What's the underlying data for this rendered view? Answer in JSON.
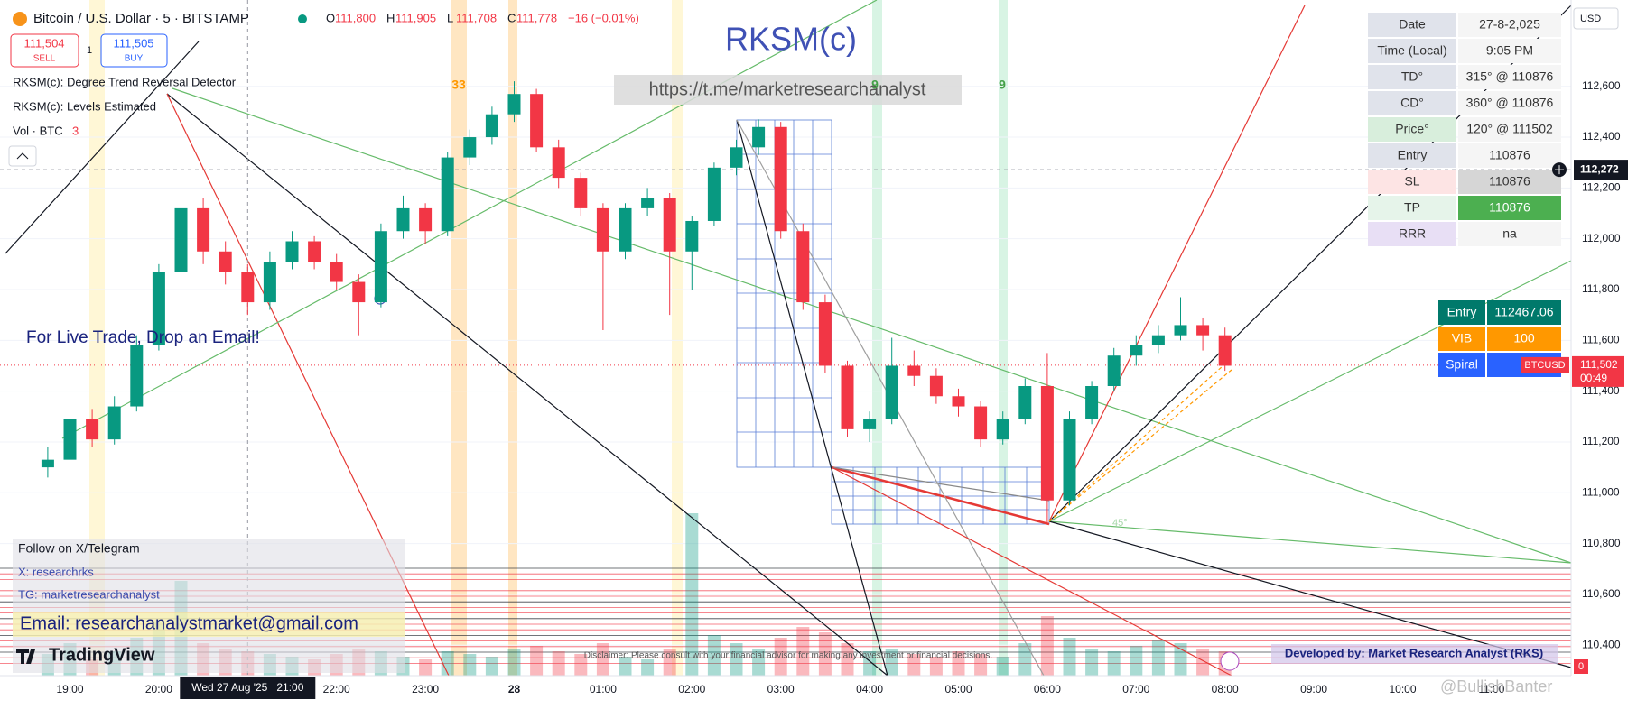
{
  "header": {
    "symbol": "Bitcoin / U.S. Dollar · 5 · BITSTAMP",
    "ohlc": [
      [
        "O",
        "111,800"
      ],
      [
        "H",
        "111,905"
      ],
      [
        "L",
        "111,708"
      ],
      [
        "C",
        "111,778"
      ]
    ],
    "change": "−16 (−0.01%)"
  },
  "trade_buttons": {
    "sell_price": "111,504",
    "sell": "SELL",
    "spread": "1",
    "buy_price": "111,505",
    "buy": "BUY"
  },
  "indicators": [
    "RKSM(c): Degree Trend Reversal Detector",
    "RKSM(c): Levels Estimated",
    "Vol · BTC"
  ],
  "volume_indicator_value": "3",
  "overlay": {
    "title": "RKSM(c)",
    "link": "https://t.me/marketresearchanalyst",
    "cta": "For Live Trade, Drop an Email!",
    "counts": [
      "33",
      "9",
      "9"
    ],
    "angle": "45°"
  },
  "info_table": {
    "rows": [
      [
        "Date",
        "27-8-2,025"
      ],
      [
        "Time (Local)",
        "9:05 PM"
      ],
      [
        "TD°",
        "315° @ 110876"
      ],
      [
        "CD°",
        "360° @ 110876"
      ],
      [
        "Price°",
        "120° @ 111502"
      ],
      [
        "Entry",
        "110876"
      ],
      [
        "SL",
        "110876"
      ],
      [
        "TP",
        "110876"
      ],
      [
        "RRR",
        "na"
      ]
    ]
  },
  "signal_table": {
    "rows": [
      [
        "Entry",
        "112467.06"
      ],
      [
        "VIB",
        "100"
      ],
      [
        "Spiral"
      ]
    ]
  },
  "price_axis": {
    "currency": "USD",
    "ylim": [
      110280,
      112940
    ],
    "yticks": [
      {
        "value": 110400,
        "label": "110,400"
      },
      {
        "value": 110600,
        "label": "110,600"
      },
      {
        "value": 110800,
        "label": "110,800"
      },
      {
        "value": 111000,
        "label": "111,000"
      },
      {
        "value": 111200,
        "label": "111,200"
      },
      {
        "value": 111400,
        "label": "111,400"
      },
      {
        "value": 111600,
        "label": "111,600"
      },
      {
        "value": 111800,
        "label": "111,800"
      },
      {
        "value": 112000,
        "label": "112,000"
      },
      {
        "value": 112200,
        "label": "112,200"
      },
      {
        "value": 112400,
        "label": "112,400"
      },
      {
        "value": 112600,
        "label": "112,600"
      }
    ],
    "crosshair": {
      "value": 112272,
      "label": "112,272"
    },
    "last": {
      "symbol": "BTCUSD",
      "value": 111502,
      "label": "111,502",
      "countdown": "00:49"
    },
    "volume_last": "0"
  },
  "time_axis": {
    "ticks": [
      "19:00",
      "20:00",
      null,
      "22:00",
      "23:00",
      "28",
      "01:00",
      "02:00",
      "03:00",
      "04:00",
      "05:00",
      "06:00",
      "07:00",
      "08:00",
      "09:00",
      "10:00",
      "11:00"
    ],
    "crosshair_label": "Wed 27 Aug '25   21:00"
  },
  "candles": [
    [
      111100,
      111180,
      111060,
      111130
    ],
    [
      111130,
      111340,
      111120,
      111290
    ],
    [
      111290,
      111330,
      111180,
      111210
    ],
    [
      111210,
      111380,
      111190,
      111340
    ],
    [
      111340,
      111620,
      111320,
      111580
    ],
    [
      111580,
      111900,
      111560,
      111870
    ],
    [
      111870,
      112590,
      111850,
      112120
    ],
    [
      112120,
      112160,
      111900,
      111950
    ],
    [
      111950,
      111990,
      111820,
      111870
    ],
    [
      111870,
      111900,
      111700,
      111750
    ],
    [
      111750,
      111950,
      111720,
      111910
    ],
    [
      111910,
      112030,
      111880,
      111990
    ],
    [
      111990,
      112010,
      111880,
      111910
    ],
    [
      111910,
      111940,
      111800,
      111830
    ],
    [
      111830,
      111860,
      111620,
      111750
    ],
    [
      111750,
      112060,
      111730,
      112030
    ],
    [
      112030,
      112170,
      112000,
      112120
    ],
    [
      112120,
      112140,
      111980,
      112030
    ],
    [
      112030,
      112340,
      112010,
      112320
    ],
    [
      112320,
      112430,
      112290,
      112400
    ],
    [
      112400,
      112520,
      112370,
      112490
    ],
    [
      112490,
      112620,
      112460,
      112570
    ],
    [
      112570,
      112590,
      112340,
      112360
    ],
    [
      112360,
      112390,
      112200,
      112240
    ],
    [
      112240,
      112260,
      112090,
      112120
    ],
    [
      112120,
      112140,
      111640,
      111950
    ],
    [
      111950,
      112140,
      111920,
      112120
    ],
    [
      112120,
      112200,
      112090,
      112160
    ],
    [
      112160,
      112180,
      111700,
      111950
    ],
    [
      111950,
      112090,
      111800,
      112070
    ],
    [
      112070,
      112300,
      112050,
      112280
    ],
    [
      112280,
      112390,
      112250,
      112360
    ],
    [
      112360,
      112470,
      112330,
      112440
    ],
    [
      112440,
      112460,
      112000,
      112030
    ],
    [
      112030,
      112060,
      111720,
      111750
    ],
    [
      111750,
      111780,
      111470,
      111500
    ],
    [
      111500,
      111520,
      111220,
      111250
    ],
    [
      111250,
      111320,
      111200,
      111290
    ],
    [
      111290,
      111610,
      111270,
      111500
    ],
    [
      111500,
      111560,
      111420,
      111460
    ],
    [
      111460,
      111490,
      111350,
      111380
    ],
    [
      111380,
      111410,
      111300,
      111340
    ],
    [
      111340,
      111360,
      111180,
      111210
    ],
    [
      111210,
      111320,
      111190,
      111290
    ],
    [
      111290,
      111450,
      111270,
      111420
    ],
    [
      111420,
      111550,
      110880,
      110970
    ],
    [
      110970,
      111320,
      110950,
      111290
    ],
    [
      111290,
      111440,
      111270,
      111420
    ],
    [
      111420,
      111570,
      111400,
      111540
    ],
    [
      111540,
      111620,
      111500,
      111580
    ],
    [
      111580,
      111660,
      111550,
      111620
    ],
    [
      111620,
      111770,
      111600,
      111660
    ],
    [
      111660,
      111690,
      111560,
      111620
    ],
    [
      111620,
      111650,
      111480,
      111500
    ]
  ],
  "volume": [
    8,
    12,
    6,
    9,
    14,
    20,
    35,
    12,
    10,
    9,
    8,
    7,
    6,
    8,
    10,
    9,
    7,
    6,
    9,
    8,
    7,
    10,
    11,
    9,
    8,
    12,
    7,
    6,
    10,
    60,
    15,
    12,
    10,
    14,
    18,
    16,
    12,
    9,
    10,
    8,
    7,
    9,
    8,
    7,
    12,
    22,
    14,
    10,
    9,
    11,
    13,
    12,
    10,
    9
  ],
  "follow_box": {
    "title": "Follow on X/Telegram",
    "x": "X: researchrks",
    "tg": "TG: marketresearchanalyst",
    "email": "Email: researchanalystmarket@gmail.com"
  },
  "footer": {
    "logo": "TradingView",
    "disclaimer": "Disclaimer: Please consult with your financial advisor for making any investment or financial decisions.",
    "developer": "Developed by: Market Research Analyst (RKS)",
    "watermark": "@BullishBanter"
  }
}
